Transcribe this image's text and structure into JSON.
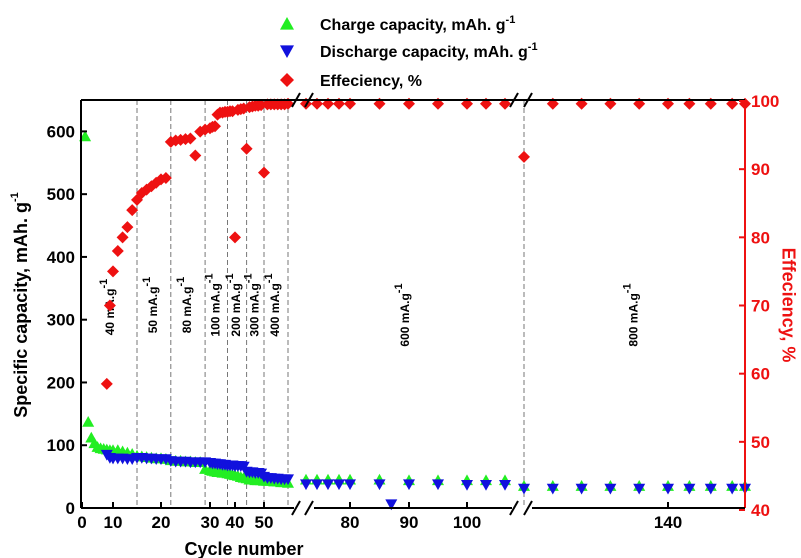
{
  "chart_data": {
    "type": "scatter",
    "xlabel": "Cycle number",
    "ylabel_left": "Specific capacity, mAh. g",
    "ylabel_left_sup": "-1",
    "ylabel_right": "Effeciency, %",
    "colors": {
      "charge": "#22ee22",
      "discharge": "#1111dd",
      "efficiency": "#ee1111",
      "right_axis": "#ee1111"
    },
    "legend": [
      {
        "key": "charge",
        "label": "Charge capacity, mAh. g",
        "sup": "-1",
        "marker": "triangle-up"
      },
      {
        "key": "discharge",
        "label": "Discharge capacity, mAh. g",
        "sup": "-1",
        "marker": "triangle-down"
      },
      {
        "key": "efficiency",
        "label": "Effeciency, %",
        "sup": "",
        "marker": "diamond"
      }
    ],
    "legend_position": "top-center",
    "x_axis_broken": true,
    "x_ticks": [
      "0",
      "10",
      "20",
      "30",
      "40",
      "50",
      "80",
      "90",
      "100",
      "140"
    ],
    "ylim_left": [
      0,
      650
    ],
    "y_ticks_left": [
      "0",
      "100",
      "200",
      "300",
      "400",
      "500",
      "600"
    ],
    "ylim_right": [
      40,
      100
    ],
    "y_ticks_right": [
      "40",
      "50",
      "60",
      "70",
      "80",
      "90",
      "100"
    ],
    "rate_zones": [
      {
        "label": "40 mA.g",
        "sup": "-1",
        "start": 1,
        "end": 15
      },
      {
        "label": "50 mA.g",
        "sup": "-1",
        "start": 15,
        "end": 22
      },
      {
        "label": "80 mA.g",
        "sup": "-1",
        "start": 22,
        "end": 29
      },
      {
        "label": "100 mA.g",
        "sup": "-1",
        "start": 29,
        "end": 37
      },
      {
        "label": "200 mA.g",
        "sup": "-1",
        "start": 37,
        "end": 44
      },
      {
        "label": "300 mA.g",
        "sup": "-1",
        "start": 44,
        "end": 50
      },
      {
        "label": "400 mA.g",
        "sup": "-1",
        "start": 50,
        "end": 57
      },
      {
        "label": "600 mA.g",
        "sup": "-1",
        "start": 57,
        "end": 115
      },
      {
        "label": "800 mA.g",
        "sup": "-1",
        "start": 115,
        "end": 158
      }
    ],
    "series": [
      {
        "name": "Charge capacity, mAh. g-1",
        "x": [
          1,
          2,
          3,
          4,
          5,
          6,
          7,
          8,
          9,
          10,
          11,
          12,
          13,
          14,
          15,
          16,
          17,
          18,
          19,
          20,
          21,
          22,
          23,
          24,
          25,
          26,
          27,
          28,
          29,
          30,
          31,
          32,
          33,
          34,
          35,
          36,
          37,
          38,
          39,
          40,
          41,
          42,
          43,
          44,
          45,
          46,
          47,
          48,
          49,
          50,
          51,
          52,
          53,
          54,
          55,
          56,
          57,
          60,
          65,
          70,
          75,
          80,
          85,
          90,
          95,
          100,
          105,
          110,
          115,
          120,
          125,
          130,
          135,
          140,
          145,
          150,
          155,
          158
        ],
        "y": [
          592,
          137,
          112,
          103,
          97,
          95,
          94,
          93,
          92,
          92,
          92,
          90,
          88,
          86,
          83,
          82,
          81,
          80,
          79,
          79,
          78,
          76,
          75,
          75,
          74,
          74,
          73,
          73,
          62,
          60,
          59,
          58,
          57,
          57,
          56,
          56,
          55,
          54,
          53,
          52,
          51,
          49,
          48,
          47,
          45,
          45,
          44,
          44,
          44,
          43,
          43,
          43,
          42,
          42,
          41,
          41,
          40,
          45,
          45,
          45,
          45,
          45,
          45,
          44,
          44,
          44,
          44,
          44,
          35,
          35,
          35,
          35,
          35,
          35,
          35,
          35,
          35,
          35
        ]
      },
      {
        "name": "Discharge capacity, mAh. g-1",
        "x": [
          8,
          9,
          10,
          11,
          12,
          13,
          14,
          15,
          16,
          17,
          18,
          19,
          20,
          21,
          22,
          23,
          24,
          25,
          26,
          27,
          28,
          29,
          30,
          31,
          32,
          33,
          34,
          35,
          36,
          37,
          38,
          39,
          40,
          41,
          42,
          43,
          44,
          45,
          46,
          47,
          48,
          49,
          50,
          51,
          52,
          53,
          54,
          55,
          56,
          57,
          60,
          65,
          70,
          75,
          80,
          85,
          87,
          90,
          95,
          100,
          105,
          110,
          115,
          120,
          125,
          130,
          135,
          140,
          145,
          150,
          155,
          158
        ],
        "y": [
          85,
          80,
          79,
          79,
          79,
          78,
          78,
          80,
          80,
          79,
          79,
          78,
          78,
          78,
          75,
          74,
          74,
          74,
          73,
          73,
          73,
          73,
          72,
          71,
          71,
          70,
          70,
          69,
          69,
          68,
          68,
          68,
          67,
          67,
          67,
          66,
          58,
          57,
          57,
          56,
          56,
          55,
          50,
          48,
          48,
          47,
          47,
          46,
          46,
          46,
          38,
          38,
          38,
          38,
          38,
          38,
          6,
          38,
          38,
          37,
          37,
          37,
          31,
          31,
          31,
          31,
          31,
          31,
          31,
          31,
          31,
          31
        ]
      },
      {
        "name": "Effeciency, %",
        "x": [
          8,
          9,
          10,
          11,
          12,
          13,
          14,
          15,
          16,
          17,
          18,
          19,
          20,
          21,
          22,
          23,
          24,
          25,
          26,
          27,
          28,
          29,
          30,
          31,
          32,
          33,
          34,
          35,
          36,
          37,
          38,
          39,
          40,
          41,
          42,
          43,
          44,
          45,
          46,
          47,
          48,
          49,
          50,
          51,
          52,
          53,
          54,
          55,
          56,
          57,
          60,
          65,
          70,
          75,
          80,
          85,
          90,
          95,
          100,
          105,
          110,
          115,
          120,
          125,
          130,
          135,
          140,
          145,
          150,
          155,
          158
        ],
        "y": [
          58.5,
          70,
          75,
          78,
          80,
          81.5,
          84,
          85.5,
          86.5,
          87,
          87.5,
          88,
          88.5,
          88.7,
          94,
          94.2,
          94.3,
          94.4,
          94.5,
          92,
          95.5,
          95.8,
          96,
          96.2,
          96.3,
          98,
          98.3,
          98.3,
          98.4,
          98.4,
          98.5,
          98.5,
          80,
          98.7,
          98.8,
          98.9,
          93,
          99.1,
          99.2,
          99.3,
          99.3,
          99.4,
          89.5,
          99.5,
          99.5,
          99.5,
          99.5,
          99.5,
          99.5,
          99.6,
          99.6,
          99.6,
          99.6,
          99.6,
          99.6,
          99.6,
          99.6,
          99.6,
          99.6,
          99.6,
          99.6,
          91.8,
          99.6,
          99.6,
          99.6,
          99.6,
          99.6,
          99.6,
          99.6,
          99.6,
          99.6
        ]
      }
    ]
  }
}
